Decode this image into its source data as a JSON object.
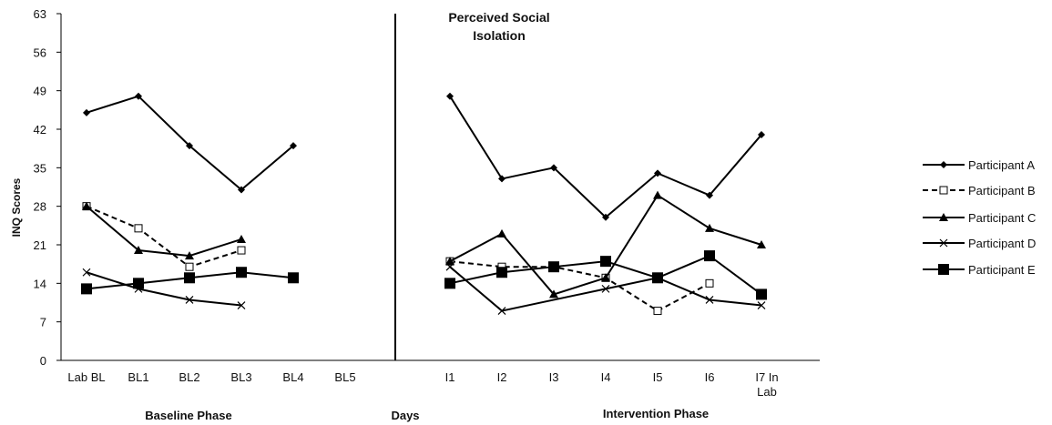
{
  "chart_data": {
    "type": "line",
    "title": "Perceived Social Isolation",
    "ylabel": "INQ Scores",
    "xlabel": "Days",
    "ylim": [
      0,
      63
    ],
    "yticks": [
      0,
      7,
      14,
      21,
      28,
      35,
      42,
      49,
      56,
      63
    ],
    "grid": false,
    "legend": "right",
    "phases": [
      {
        "label": "Baseline Phase",
        "categories": [
          "Lab BL",
          "BL1",
          "BL2",
          "BL3",
          "BL4",
          "BL5"
        ]
      },
      {
        "label": "Intervention Phase",
        "categories": [
          "I1",
          "I2",
          "I3",
          "I4",
          "I5",
          "I6",
          "I7 In Lab"
        ]
      }
    ],
    "series": [
      {
        "name": "Participant A",
        "marker": "diamond",
        "dash": "solid",
        "baseline": [
          45,
          48,
          39,
          31,
          39,
          null
        ],
        "intervention": [
          48,
          33,
          35,
          26,
          34,
          30,
          41
        ]
      },
      {
        "name": "Participant B",
        "marker": "square-open",
        "dash": "dashed",
        "baseline": [
          28,
          24,
          17,
          20,
          null,
          null
        ],
        "intervention": [
          18,
          17,
          17,
          15,
          9,
          14,
          null
        ]
      },
      {
        "name": "Participant C",
        "marker": "triangle",
        "dash": "solid",
        "baseline": [
          28,
          20,
          19,
          22,
          null,
          null
        ],
        "intervention": [
          18,
          23,
          12,
          15,
          30,
          24,
          21
        ]
      },
      {
        "name": "Participant D",
        "marker": "x",
        "dash": "solid",
        "baseline": [
          16,
          13,
          11,
          10,
          null,
          null
        ],
        "intervention": [
          17,
          9,
          null,
          13,
          15,
          11,
          10
        ]
      },
      {
        "name": "Participant E",
        "marker": "square-filled",
        "dash": "solid",
        "baseline": [
          13,
          14,
          15,
          16,
          15,
          null
        ],
        "intervention": [
          14,
          16,
          17,
          18,
          15,
          19,
          12
        ]
      }
    ]
  }
}
